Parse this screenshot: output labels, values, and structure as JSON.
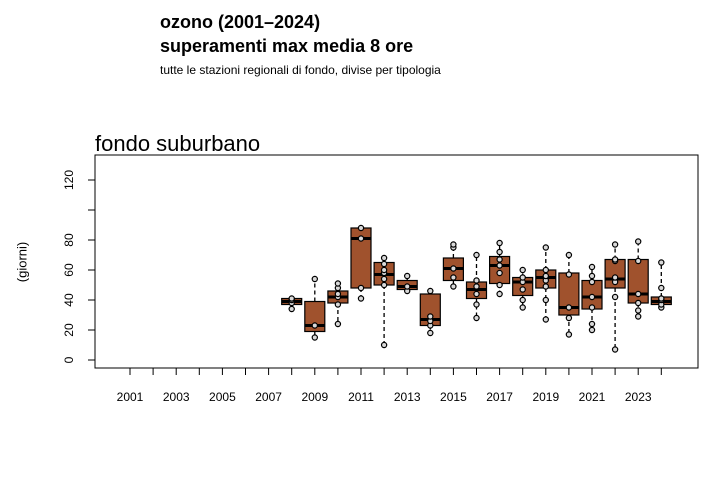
{
  "header": {
    "title": "ozono (2001–2024)",
    "subtitle": "superamenti max media 8 ore",
    "caption": "tutte le stazioni regionali di fondo, divise per tipologia"
  },
  "panel": {
    "title": "fondo suburbano",
    "ylabel": "(giorni)"
  },
  "colors": {
    "box_fill": "#A0522D",
    "point_fill": "#d9d9d9",
    "stroke": "#000000"
  },
  "chart_data": {
    "type": "box",
    "title": "fondo suburbano",
    "xlabel": "",
    "ylabel": "(giorni)",
    "ylim": [
      0,
      130
    ],
    "yticks": [
      0,
      20,
      40,
      60,
      80,
      120
    ],
    "xlim": [
      2001,
      2024
    ],
    "xticks": [
      2001,
      2003,
      2005,
      2007,
      2009,
      2011,
      2013,
      2015,
      2017,
      2019,
      2021,
      2023
    ],
    "grid": false,
    "categories": [
      2001,
      2002,
      2003,
      2004,
      2005,
      2006,
      2007,
      2008,
      2009,
      2010,
      2011,
      2012,
      2013,
      2014,
      2015,
      2016,
      2017,
      2018,
      2019,
      2020,
      2021,
      2022,
      2023,
      2024
    ],
    "boxes": [
      {
        "year": 2008,
        "min": 34,
        "q1": 37,
        "median": 39,
        "q3": 41,
        "max": 41,
        "points": [
          34,
          38,
          40,
          41
        ]
      },
      {
        "year": 2009,
        "min": 15,
        "q1": 19,
        "median": 23,
        "q3": 39,
        "max": 54,
        "points": [
          15,
          23,
          54
        ]
      },
      {
        "year": 2010,
        "min": 24,
        "q1": 38,
        "median": 42,
        "q3": 46,
        "max": 51,
        "points": [
          24,
          37,
          42,
          44,
          48,
          51
        ]
      },
      {
        "year": 2011,
        "min": 41,
        "q1": 48,
        "median": 81,
        "q3": 88,
        "max": 88,
        "points": [
          41,
          48,
          81,
          88
        ]
      },
      {
        "year": 2012,
        "min": 10,
        "q1": 50,
        "median": 57,
        "q3": 65,
        "max": 68,
        "points": [
          10,
          50,
          54,
          58,
          60,
          64,
          68
        ]
      },
      {
        "year": 2013,
        "min": 46,
        "q1": 47,
        "median": 49,
        "q3": 53,
        "max": 56,
        "points": [
          46,
          49,
          56
        ]
      },
      {
        "year": 2014,
        "min": 18,
        "q1": 23,
        "median": 27,
        "q3": 44,
        "max": 46,
        "points": [
          18,
          23,
          26,
          29,
          46
        ]
      },
      {
        "year": 2015,
        "min": 49,
        "q1": 53,
        "median": 61,
        "q3": 68,
        "max": 77,
        "points": [
          49,
          55,
          61,
          75,
          77
        ]
      },
      {
        "year": 2016,
        "min": 28,
        "q1": 41,
        "median": 47,
        "q3": 52,
        "max": 70,
        "points": [
          28,
          37,
          44,
          49,
          53,
          70
        ]
      },
      {
        "year": 2017,
        "min": 44,
        "q1": 51,
        "median": 63,
        "q3": 69,
        "max": 78,
        "points": [
          44,
          50,
          58,
          63,
          67,
          72,
          78
        ]
      },
      {
        "year": 2018,
        "min": 35,
        "q1": 43,
        "median": 52,
        "q3": 55,
        "max": 60,
        "points": [
          35,
          40,
          47,
          52,
          55,
          60
        ]
      },
      {
        "year": 2019,
        "min": 27,
        "q1": 48,
        "median": 55,
        "q3": 60,
        "max": 76,
        "points": [
          27,
          40,
          49,
          53,
          56,
          60,
          75
        ]
      },
      {
        "year": 2020,
        "min": 17,
        "q1": 30,
        "median": 35,
        "q3": 58,
        "max": 71,
        "points": [
          17,
          28,
          35,
          57,
          70
        ]
      },
      {
        "year": 2021,
        "min": 20,
        "q1": 34,
        "median": 42,
        "q3": 53,
        "max": 63,
        "points": [
          20,
          24,
          35,
          42,
          52,
          56,
          62
        ]
      },
      {
        "year": 2022,
        "min": 7,
        "q1": 48,
        "median": 54,
        "q3": 67,
        "max": 77,
        "points": [
          7,
          42,
          52,
          55,
          66,
          67,
          77
        ]
      },
      {
        "year": 2023,
        "min": 29,
        "q1": 38,
        "median": 44,
        "q3": 67,
        "max": 80,
        "points": [
          29,
          33,
          38,
          44,
          66,
          79
        ]
      },
      {
        "year": 2024,
        "min": 35,
        "q1": 37,
        "median": 39,
        "q3": 42,
        "max": 65,
        "points": [
          35,
          37,
          40,
          41,
          48,
          65
        ]
      }
    ]
  }
}
